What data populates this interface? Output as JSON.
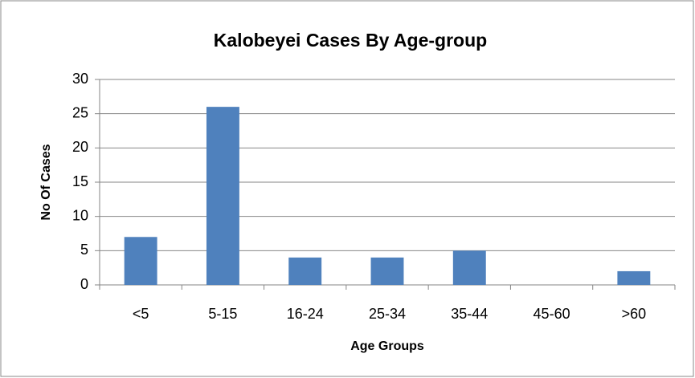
{
  "chart_data": {
    "type": "bar",
    "title": "Kalobeyei Cases By Age-group",
    "x_label": "Age Groups",
    "y_label": "No Of Cases",
    "categories": [
      "<5",
      "5-15",
      "16-24",
      "25-34",
      "35-44",
      "45-60",
      ">60"
    ],
    "values": [
      7,
      26,
      4,
      4,
      5,
      0,
      2
    ],
    "color": "#4f81bd",
    "ylim": [
      0,
      30
    ],
    "yticks": [
      0,
      5,
      10,
      15,
      20,
      25,
      30
    ],
    "grid": true
  }
}
